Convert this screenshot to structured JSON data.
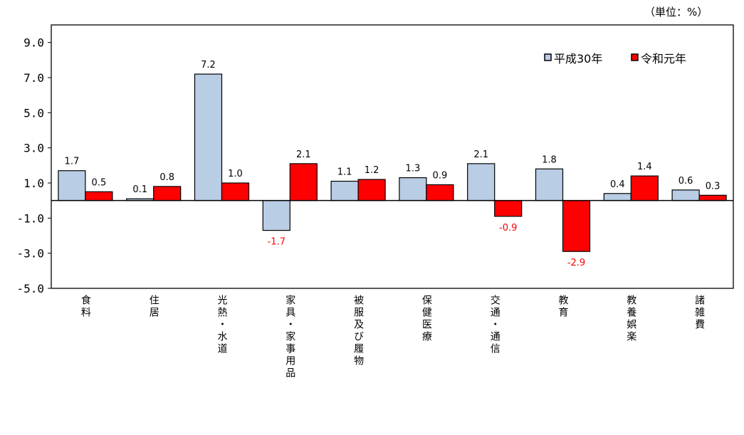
{
  "chart_data": {
    "type": "bar",
    "unit_note": "（単位：%）",
    "categories": [
      "食料",
      "住居",
      "光熱・水道",
      "家具・家事用品",
      "被服及び履物",
      "保健医療",
      "交通・通信",
      "教育",
      "教養娯楽",
      "諸雑費"
    ],
    "series": [
      {
        "name": "平成30年",
        "color": "#B9CDE5",
        "values": [
          1.7,
          0.1,
          7.2,
          -1.7,
          1.1,
          1.3,
          2.1,
          1.8,
          0.4,
          0.6
        ]
      },
      {
        "name": "令和元年",
        "color": "#FF0000",
        "values": [
          0.5,
          0.8,
          1.0,
          2.1,
          1.2,
          0.9,
          -0.9,
          -2.9,
          1.4,
          0.3
        ]
      }
    ],
    "ylim": [
      -5,
      10
    ],
    "yticks": [
      "9.0",
      "7.0",
      "5.0",
      "3.0",
      "1.0",
      "-1.0",
      "-3.0",
      "-5.0"
    ],
    "negative_label_color": "#FF0000",
    "legend": "top-right",
    "grid": false
  }
}
